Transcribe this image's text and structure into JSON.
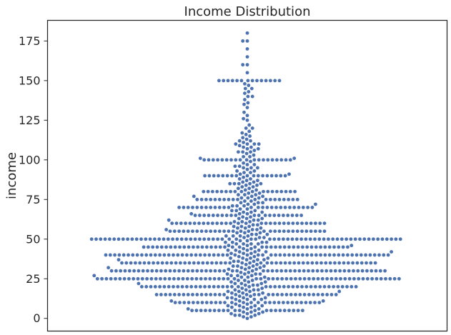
{
  "chart_data": {
    "type": "scatter",
    "subtype": "swarm",
    "title": "Income Distribution",
    "xlabel": "",
    "ylabel": "income",
    "ylim": [
      -8,
      188
    ],
    "yticks": [
      0,
      25,
      50,
      75,
      100,
      125,
      150,
      175
    ],
    "grid": false,
    "marker_color": "#4c72b0",
    "values": [
      180,
      175,
      175,
      170,
      165,
      160,
      160,
      155,
      150,
      150,
      150,
      150,
      150,
      150,
      150,
      150,
      150,
      150,
      150,
      150,
      150,
      150,
      148,
      147,
      145,
      145,
      143,
      142,
      140,
      140,
      138,
      136,
      135,
      133,
      130,
      128,
      126,
      125,
      122,
      120,
      120,
      118,
      117,
      116,
      115,
      114,
      113,
      112,
      112,
      111,
      110,
      110,
      110,
      110,
      109,
      108,
      108,
      107,
      107,
      106,
      105,
      105,
      105,
      104,
      103,
      102,
      102,
      101,
      101,
      100,
      100,
      100,
      100,
      100,
      100,
      100,
      100,
      100,
      100,
      100,
      100,
      100,
      100,
      100,
      100,
      100,
      100,
      100,
      99,
      98,
      97,
      97,
      96,
      96,
      95,
      95,
      95,
      94,
      93,
      93,
      92,
      92,
      91,
      91,
      90,
      90,
      90,
      90,
      90,
      90,
      90,
      90,
      90,
      90,
      90,
      90,
      90,
      90,
      90,
      90,
      90,
      89,
      88,
      88,
      87,
      87,
      86,
      86,
      85,
      85,
      85,
      85,
      85,
      84,
      84,
      83,
      83,
      82,
      82,
      81,
      81,
      80,
      80,
      80,
      80,
      80,
      80,
      80,
      80,
      80,
      80,
      80,
      80,
      80,
      80,
      80,
      80,
      80,
      80,
      79,
      79,
      78,
      78,
      78,
      77,
      77,
      77,
      76,
      76,
      76,
      75,
      75,
      75,
      75,
      75,
      75,
      75,
      75,
      75,
      75,
      75,
      75,
      75,
      75,
      75,
      75,
      75,
      75,
      75,
      74,
      74,
      73,
      73,
      73,
      72,
      72,
      72,
      71,
      71,
      71,
      70,
      70,
      70,
      70,
      70,
      70,
      70,
      70,
      70,
      70,
      70,
      70,
      70,
      70,
      70,
      70,
      70,
      70,
      70,
      70,
      70,
      70,
      70,
      70,
      70,
      70,
      69,
      69,
      68,
      68,
      68,
      67,
      67,
      67,
      66,
      66,
      66,
      65,
      65,
      65,
      65,
      65,
      65,
      65,
      65,
      65,
      65,
      65,
      65,
      65,
      65,
      65,
      65,
      65,
      65,
      65,
      65,
      65,
      64,
      64,
      63,
      63,
      63,
      62,
      62,
      62,
      61,
      61,
      61,
      60,
      60,
      60,
      60,
      60,
      60,
      60,
      60,
      60,
      60,
      60,
      60,
      60,
      60,
      60,
      60,
      60,
      60,
      60,
      60,
      60,
      60,
      60,
      60,
      60,
      60,
      60,
      60,
      60,
      60,
      60,
      59,
      59,
      58,
      58,
      58,
      57,
      57,
      57,
      56,
      56,
      56,
      55,
      55,
      55,
      55,
      55,
      55,
      55,
      55,
      55,
      55,
      55,
      55,
      55,
      55,
      55,
      55,
      55,
      55,
      55,
      55,
      55,
      55,
      55,
      55,
      55,
      55,
      55,
      55,
      55,
      55,
      55,
      54,
      54,
      54,
      53,
      53,
      53,
      52,
      52,
      52,
      52,
      51,
      51,
      51,
      50,
      50,
      50,
      50,
      50,
      50,
      50,
      50,
      50,
      50,
      50,
      50,
      50,
      50,
      50,
      50,
      50,
      50,
      50,
      50,
      50,
      50,
      50,
      50,
      50,
      50,
      50,
      50,
      50,
      50,
      50,
      50,
      50,
      50,
      50,
      50,
      50,
      50,
      50,
      50,
      50,
      50,
      50,
      50,
      50,
      50,
      50,
      50,
      50,
      50,
      50,
      50,
      50,
      50,
      50,
      50,
      50,
      50,
      50,
      50,
      50,
      50,
      50,
      50,
      49,
      49,
      48,
      48,
      48,
      48,
      47,
      47,
      47,
      47,
      46,
      46,
      46,
      45,
      45,
      45,
      45,
      45,
      45,
      45,
      45,
      45,
      45,
      45,
      45,
      45,
      45,
      45,
      45,
      45,
      45,
      45,
      45,
      45,
      45,
      45,
      45,
      45,
      45,
      45,
      45,
      45,
      45,
      45,
      45,
      45,
      45,
      45,
      45,
      45,
      45,
      45,
      45,
      45,
      45,
      44,
      44,
      43,
      43,
      43,
      43,
      42,
      42,
      42,
      42,
      41,
      41,
      41,
      40,
      40,
      40,
      40,
      40,
      40,
      40,
      40,
      40,
      40,
      40,
      40,
      40,
      40,
      40,
      40,
      40,
      40,
      40,
      40,
      40,
      40,
      40,
      40,
      40,
      40,
      40,
      40,
      40,
      40,
      40,
      40,
      40,
      40,
      40,
      40,
      40,
      40,
      40,
      40,
      40,
      40,
      40,
      40,
      40,
      40,
      40,
      40,
      40,
      40,
      40,
      40,
      40,
      40,
      40,
      40,
      40,
      40,
      40,
      39,
      39,
      38,
      38,
      38,
      38,
      37,
      37,
      37,
      37,
      36,
      36,
      36,
      35,
      35,
      35,
      35,
      35,
      35,
      35,
      35,
      35,
      35,
      35,
      35,
      35,
      35,
      35,
      35,
      35,
      35,
      35,
      35,
      35,
      35,
      35,
      35,
      35,
      35,
      35,
      35,
      35,
      35,
      35,
      35,
      35,
      35,
      35,
      35,
      35,
      35,
      35,
      35,
      35,
      35,
      35,
      35,
      35,
      35,
      35,
      35,
      35,
      35,
      35,
      35,
      35,
      34,
      34,
      33,
      33,
      33,
      33,
      32,
      32,
      32,
      32,
      31,
      31,
      31,
      30,
      30,
      30,
      30,
      30,
      30,
      30,
      30,
      30,
      30,
      30,
      30,
      30,
      30,
      30,
      30,
      30,
      30,
      30,
      30,
      30,
      30,
      30,
      30,
      30,
      30,
      30,
      30,
      30,
      30,
      30,
      30,
      30,
      30,
      30,
      30,
      30,
      30,
      30,
      30,
      30,
      30,
      30,
      30,
      30,
      30,
      30,
      30,
      30,
      30,
      30,
      30,
      30,
      30,
      30,
      30,
      30,
      29,
      29,
      28,
      28,
      28,
      28,
      27,
      27,
      27,
      27,
      26,
      26,
      26,
      25,
      25,
      25,
      25,
      25,
      25,
      25,
      25,
      25,
      25,
      25,
      25,
      25,
      25,
      25,
      25,
      25,
      25,
      25,
      25,
      25,
      25,
      25,
      25,
      25,
      25,
      25,
      25,
      25,
      25,
      25,
      25,
      25,
      25,
      25,
      25,
      25,
      25,
      25,
      25,
      25,
      25,
      25,
      25,
      25,
      25,
      25,
      25,
      25,
      25,
      25,
      25,
      25,
      25,
      25,
      25,
      25,
      25,
      25,
      25,
      25,
      25,
      25,
      24,
      24,
      24,
      23,
      23,
      23,
      22,
      22,
      22,
      22,
      21,
      21,
      21,
      20,
      20,
      20,
      20,
      20,
      20,
      20,
      20,
      20,
      20,
      20,
      20,
      20,
      20,
      20,
      20,
      20,
      20,
      20,
      20,
      20,
      20,
      20,
      20,
      20,
      20,
      20,
      20,
      20,
      20,
      20,
      20,
      20,
      20,
      20,
      20,
      20,
      20,
      20,
      20,
      20,
      20,
      20,
      20,
      19,
      19,
      18,
      18,
      18,
      18,
      17,
      17,
      17,
      17,
      16,
      16,
      16,
      15,
      15,
      15,
      15,
      15,
      15,
      15,
      15,
      15,
      15,
      15,
      15,
      15,
      15,
      15,
      15,
      15,
      15,
      15,
      15,
      15,
      15,
      15,
      15,
      15,
      15,
      15,
      15,
      15,
      15,
      15,
      15,
      15,
      15,
      15,
      15,
      14,
      14,
      13,
      13,
      13,
      13,
      12,
      12,
      12,
      12,
      11,
      11,
      11,
      10,
      10,
      10,
      10,
      10,
      10,
      10,
      10,
      10,
      10,
      10,
      10,
      10,
      10,
      10,
      10,
      10,
      10,
      10,
      10,
      10,
      10,
      10,
      10,
      10,
      10,
      10,
      10,
      10,
      9,
      9,
      8,
      8,
      8,
      8,
      7,
      7,
      7,
      6,
      6,
      6,
      5,
      5,
      5,
      5,
      5,
      5,
      5,
      5,
      5,
      5,
      5,
      5,
      5,
      5,
      5,
      5,
      5,
      5,
      5,
      5,
      5,
      4,
      4,
      4,
      3,
      3,
      3,
      2,
      2,
      2,
      1,
      1,
      0
    ]
  }
}
